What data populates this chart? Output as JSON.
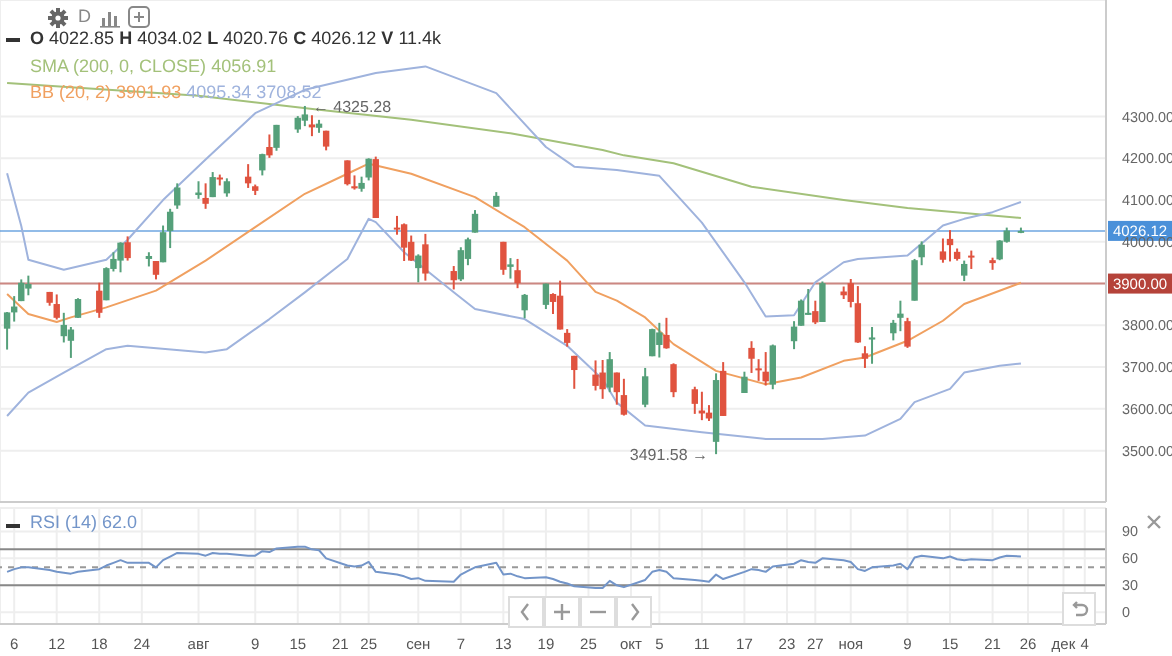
{
  "chart_data": [
    {
      "type": "candlestick",
      "x": [
        "--07-05",
        "--07-06",
        "--07-07",
        "--07-08",
        "--07-11",
        "--07-12",
        "--07-13",
        "--07-14",
        "--07-15",
        "--07-18",
        "--07-19",
        "--07-20",
        "--07-21",
        "--07-22",
        "--07-25",
        "--07-26",
        "--07-27",
        "--07-28",
        "--07-29",
        "--08-01",
        "--08-02",
        "--08-03",
        "--08-04",
        "--08-05",
        "--08-08",
        "--08-09",
        "--08-10",
        "--08-11",
        "--08-12",
        "--08-15",
        "--08-16",
        "--08-17",
        "--08-18",
        "--08-19",
        "--08-22",
        "--08-23",
        "--08-24",
        "--08-25",
        "--08-26",
        "--08-29",
        "--08-30",
        "--08-31",
        "--09-01",
        "--09-02",
        "--09-06",
        "--09-07",
        "--09-08",
        "--09-09",
        "--09-12",
        "--09-13",
        "--09-14",
        "--09-15",
        "--09-16",
        "--09-19",
        "--09-20",
        "--09-21",
        "--09-22",
        "--09-23",
        "--09-26",
        "--09-27",
        "--09-28",
        "--09-29",
        "--09-30",
        "--10-03",
        "--10-04",
        "--10-05",
        "--10-06",
        "--10-07",
        "--10-10",
        "--10-11",
        "--10-12",
        "--10-13",
        "--10-14",
        "--10-17",
        "--10-18",
        "--10-19",
        "--10-20",
        "--10-21",
        "--10-24",
        "--10-25",
        "--10-26",
        "--10-27",
        "--10-28",
        "--10-31",
        "--11-01",
        "--11-02",
        "--11-03",
        "--11-04",
        "--11-07",
        "--11-08",
        "--11-09",
        "--11-10",
        "--11-11",
        "--11-14",
        "--11-15",
        "--11-16",
        "--11-17",
        "--11-18",
        "--11-21",
        "--11-22",
        "--11-23",
        "--11-25"
      ],
      "ohlc": [
        [
          3792,
          3832,
          3742,
          3831
        ],
        [
          3831,
          3870,
          3809,
          3845
        ],
        [
          3858,
          3910,
          3858,
          3902
        ],
        [
          3888,
          3919,
          3872,
          3899
        ],
        [
          3880,
          3880,
          3847,
          3854
        ],
        [
          3851,
          3874,
          3814,
          3818
        ],
        [
          3774,
          3830,
          3759,
          3801
        ],
        [
          3763,
          3796,
          3722,
          3790
        ],
        [
          3818,
          3865,
          3818,
          3863
        ],
        [
          3883,
          3902,
          3818,
          3830
        ],
        [
          3860,
          3939,
          3860,
          3937
        ],
        [
          3935,
          3975,
          3929,
          3959
        ],
        [
          3955,
          3999,
          3927,
          3998
        ],
        [
          3999,
          4013,
          3955,
          3961
        ],
        [
          3959,
          3975,
          3941,
          3966
        ],
        [
          3954,
          3954,
          3910,
          3921
        ],
        [
          3951,
          4039,
          3951,
          4023
        ],
        [
          4026,
          4079,
          3985,
          4072
        ],
        [
          4087,
          4140,
          4079,
          4130
        ],
        [
          4112,
          4145,
          4103,
          4118
        ],
        [
          4105,
          4140,
          4079,
          4091
        ],
        [
          4107,
          4167,
          4107,
          4155
        ],
        [
          4154,
          4161,
          4135,
          4152
        ],
        [
          4116,
          4152,
          4108,
          4145
        ],
        [
          4156,
          4186,
          4129,
          4140
        ],
        [
          4133,
          4137,
          4112,
          4122
        ],
        [
          4171,
          4211,
          4159,
          4210
        ],
        [
          4227,
          4257,
          4201,
          4207
        ],
        [
          4225,
          4280,
          4218,
          4280
        ],
        [
          4269,
          4301,
          4261,
          4297
        ],
        [
          4290,
          4325.28,
          4277,
          4305
        ],
        [
          4281,
          4303,
          4253,
          4274
        ],
        [
          4273,
          4292,
          4261,
          4283
        ],
        [
          4266,
          4266,
          4219,
          4228
        ],
        [
          4195,
          4195,
          4135,
          4138
        ],
        [
          4133,
          4159,
          4125,
          4128
        ],
        [
          4127,
          4156,
          4120,
          4141
        ],
        [
          4154,
          4200,
          4147,
          4199
        ],
        [
          4198,
          4204,
          4057,
          4057
        ],
        [
          4034,
          4062,
          4017,
          4030
        ],
        [
          4042,
          4044,
          3954,
          3986
        ],
        [
          4000,
          4015,
          3954,
          3955
        ],
        [
          3937,
          3970,
          3903,
          3967
        ],
        [
          3994,
          4019,
          3907,
          3924
        ],
        [
          3930,
          3942,
          3886,
          3908
        ],
        [
          3910,
          3987,
          3906,
          3980
        ],
        [
          3959,
          4010,
          3944,
          4006
        ],
        [
          4022,
          4076,
          4022,
          4067
        ],
        [
          4084,
          4119,
          4084,
          4110
        ],
        [
          4000,
          4000,
          3921,
          3933
        ],
        [
          3940,
          3961,
          3912,
          3946
        ],
        [
          3932,
          3959,
          3889,
          3901
        ],
        [
          3836,
          3875,
          3817,
          3873
        ],
        [
          3849,
          3900,
          3839,
          3900
        ],
        [
          3875,
          3877,
          3827,
          3856
        ],
        [
          3871,
          3907,
          3790,
          3790
        ],
        [
          3782,
          3791,
          3749,
          3758
        ],
        [
          3727,
          3727,
          3648,
          3693
        ],
        [
          3682,
          3716,
          3644,
          3655
        ],
        [
          3687,
          3717,
          3624,
          3647
        ],
        [
          3651,
          3736,
          3640,
          3719
        ],
        [
          3687,
          3687,
          3610,
          3640
        ],
        [
          3633,
          3672,
          3584,
          3586
        ],
        [
          3610,
          3698,
          3604,
          3678
        ],
        [
          3726,
          3792,
          3726,
          3791
        ],
        [
          3753,
          3806,
          3723,
          3783
        ],
        [
          3777,
          3818,
          3744,
          3745
        ],
        [
          3707,
          3709,
          3628,
          3640
        ],
        [
          3647,
          3653,
          3588,
          3612
        ],
        [
          3596,
          3641,
          3573,
          3589
        ],
        [
          3591,
          3609,
          3571,
          3577
        ],
        [
          3521,
          3685,
          3491.58,
          3669
        ],
        [
          3691,
          3712,
          3583,
          3583
        ],
        [
          3638,
          3689,
          3638,
          3677
        ],
        [
          3746,
          3762,
          3686,
          3720
        ],
        [
          3697,
          3719,
          3667,
          3695
        ],
        [
          3689,
          3736,
          3656,
          3666
        ],
        [
          3658,
          3754,
          3647,
          3752
        ],
        [
          3762,
          3810,
          3743,
          3797
        ],
        [
          3799,
          3862,
          3799,
          3859
        ],
        [
          3825,
          3887,
          3825,
          3830
        ],
        [
          3834,
          3859,
          3803,
          3807
        ],
        [
          3808,
          3905,
          3808,
          3901
        ],
        [
          3881,
          3893,
          3863,
          3872
        ],
        [
          3901,
          3911,
          3843,
          3856
        ],
        [
          3853,
          3894,
          3758,
          3759
        ],
        [
          3733,
          3750,
          3698,
          3720
        ],
        [
          3766,
          3796,
          3708,
          3771
        ],
        [
          3781,
          3813,
          3764,
          3806
        ],
        [
          3818,
          3859,
          3786,
          3828
        ],
        [
          3810,
          3818,
          3746,
          3749
        ],
        [
          3859,
          3959,
          3859,
          3956
        ],
        [
          3963,
          4001,
          3944,
          3993
        ],
        [
          3977,
          4008,
          3950,
          3957
        ],
        [
          4007,
          4028,
          3953,
          3992
        ],
        [
          3976,
          3984,
          3955,
          3959
        ],
        [
          3919,
          3955,
          3906,
          3947
        ],
        [
          3967,
          3979,
          3935,
          3965
        ],
        [
          3956,
          3962,
          3933,
          3949
        ],
        [
          3958,
          4004,
          3956,
          4003
        ],
        [
          4000,
          4034,
          3998,
          4027
        ],
        [
          4022.85,
          4034.02,
          4020.76,
          4026.12
        ]
      ],
      "colors": [
        "#55a07a",
        "#55a07a",
        "#55a07a",
        "#55a07a",
        "#e0533f",
        "#e0533f",
        "#55a07a",
        "#55a07a",
        "#55a07a",
        "#e0533f",
        "#55a07a",
        "#55a07a",
        "#55a07a",
        "#e0533f",
        "#55a07a",
        "#e0533f",
        "#55a07a",
        "#55a07a",
        "#55a07a",
        "#55a07a",
        "#e0533f",
        "#55a07a",
        "#e0533f",
        "#55a07a",
        "#e0533f",
        "#e0533f",
        "#55a07a",
        "#e0533f",
        "#55a07a",
        "#55a07a",
        "#55a07a",
        "#e0533f",
        "#55a07a",
        "#e0533f",
        "#e0533f",
        "#e0533f",
        "#55a07a",
        "#55a07a",
        "#e0533f",
        "#e0533f",
        "#e0533f",
        "#e0533f",
        "#55a07a",
        "#e0533f",
        "#e0533f",
        "#55a07a",
        "#55a07a",
        "#55a07a",
        "#55a07a",
        "#e0533f",
        "#55a07a",
        "#e0533f",
        "#55a07a",
        "#55a07a",
        "#e0533f",
        "#e0533f",
        "#e0533f",
        "#e0533f",
        "#e0533f",
        "#e0533f",
        "#55a07a",
        "#e0533f",
        "#e0533f",
        "#55a07a",
        "#55a07a",
        "#55a07a",
        "#e0533f",
        "#e0533f",
        "#e0533f",
        "#e0533f",
        "#e0533f",
        "#55a07a",
        "#e0533f",
        "#55a07a",
        "#e0533f",
        "#e0533f",
        "#e0533f",
        "#55a07a",
        "#55a07a",
        "#55a07a",
        "#55a07a",
        "#e0533f",
        "#55a07a",
        "#e0533f",
        "#e0533f",
        "#e0533f",
        "#e0533f",
        "#55a07a",
        "#55a07a",
        "#55a07a",
        "#e0533f",
        "#55a07a",
        "#55a07a",
        "#e0533f",
        "#e0533f",
        "#e0533f",
        "#55a07a",
        "#e0533f",
        "#e0533f",
        "#55a07a",
        "#55a07a",
        "#55a07a"
      ],
      "series": [
        {
          "type": "line",
          "name": "SMA (200, 0, CLOSE)",
          "color": "#a3c17a",
          "x": [
            "--07-05",
            "--08-01",
            "--08-18",
            "--08-31",
            "--09-14",
            "--09-27",
            "--09-30",
            "--10-07",
            "--10-18",
            "--10-31",
            "--11-09",
            "--11-25"
          ],
          "values": [
            4380,
            4350,
            4316,
            4292,
            4260,
            4220,
            4207,
            4188,
            4132,
            4100,
            4081,
            4056.91
          ]
        },
        {
          "type": "line",
          "name": "BB (20, 2)",
          "color": "#f0a060",
          "x": [
            "--07-05",
            "--07-08",
            "--07-12",
            "--07-14",
            "--07-19",
            "--07-26",
            "--08-02",
            "--08-09",
            "--08-16",
            "--08-22",
            "--08-25",
            "--08-31",
            "--09-09",
            "--09-16",
            "--09-22",
            "--09-26",
            "--09-29",
            "--10-03",
            "--10-07",
            "--10-13",
            "--10-20",
            "--10-25",
            "--10-31",
            "--11-03",
            "--11-09",
            "--11-14",
            "--11-17",
            "--11-25"
          ],
          "values": [
            3875,
            3827,
            3808,
            3819,
            3843,
            3883,
            3955,
            4035,
            4115,
            4163,
            4187,
            4163,
            4107,
            4035,
            3955,
            3880,
            3859,
            3819,
            3755,
            3691,
            3659,
            3675,
            3715,
            3723,
            3763,
            3811,
            3851,
            3901.93
          ]
        },
        {
          "type": "line",
          "color": "#9fb3dd",
          "x": [
            "--07-05",
            "--07-07",
            "--07-08",
            "--07-13",
            "--07-19",
            "--07-22",
            "--07-27",
            "--08-02",
            "--08-09",
            "--08-16",
            "--08-26",
            "--09-02",
            "--09-12",
            "--09-19",
            "--09-23",
            "--09-29",
            "--10-05",
            "--10-11",
            "--10-17",
            "--10-20",
            "--10-24",
            "--10-27",
            "--10-31",
            "--11-02",
            "--11-09",
            "--11-14",
            "--11-17",
            "--11-21",
            "--11-25"
          ],
          "values": [
            4164,
            4038,
            3957,
            3933,
            3957,
            4005,
            4100,
            4197,
            4308,
            4364,
            4404,
            4420,
            4356,
            4227,
            4180,
            4172,
            4158,
            4046,
            3903,
            3821,
            3824,
            3903,
            3951,
            3959,
            3967,
            4039,
            4055,
            4071,
            4095.34
          ]
        },
        {
          "type": "line",
          "color": "#9fb3dd",
          "x": [
            "--07-05",
            "--07-08",
            "--07-13",
            "--07-19",
            "--07-22",
            "--08-02",
            "--08-05",
            "--08-11",
            "--08-16",
            "--08-22",
            "--08-25",
            "--08-26",
            "--08-30",
            "--09-06",
            "--09-09",
            "--09-16",
            "--09-22",
            "--09-27",
            "--09-29",
            "--10-03",
            "--10-11",
            "--10-20",
            "--10-28",
            "--11-03",
            "--11-08",
            "--11-10",
            "--11-15",
            "--11-17",
            "--11-22",
            "--11-25"
          ],
          "values": [
            3583,
            3639,
            3687,
            3743,
            3751,
            3735,
            3743,
            3815,
            3879,
            3959,
            4055,
            4047,
            3975,
            3879,
            3839,
            3815,
            3751,
            3671,
            3615,
            3560,
            3544,
            3528,
            3528,
            3536,
            3576,
            3616,
            3648,
            3687,
            3703,
            3708.52
          ]
        }
      ],
      "xlim": [
        "--07-04",
        "--12-07"
      ],
      "xticks": [
        {
          "value": "--07-06",
          "label": null
        },
        {
          "value": "--07-12",
          "label": null
        },
        {
          "value": "--07-18",
          "label": null
        },
        {
          "value": "--07-24",
          "label": null
        },
        {
          "value": "--08-01",
          "label": null
        },
        {
          "value": "--08-09",
          "label": null
        },
        {
          "value": "--08-15",
          "label": null
        },
        {
          "value": "--08-21",
          "label": null
        },
        {
          "value": "--08-25",
          "label": null
        },
        {
          "value": "--09-01",
          "label": null
        },
        {
          "value": "--09-07",
          "label": null
        },
        {
          "value": "--09-13",
          "label": null
        },
        {
          "value": "--09-19",
          "label": null
        },
        {
          "value": "--09-25",
          "label": null
        },
        {
          "value": "--10-01",
          "label": null
        },
        {
          "value": "--10-05",
          "label": null
        },
        {
          "value": "--10-11",
          "label": null
        },
        {
          "value": "--10-17",
          "label": null
        },
        {
          "value": "--10-23",
          "label": null
        },
        {
          "value": "--10-27",
          "label": null
        },
        {
          "value": "--11-01",
          "label": null
        },
        {
          "value": "--11-09",
          "label": null
        },
        {
          "value": "--11-15",
          "label": null
        },
        {
          "value": "--11-21",
          "label": null
        },
        {
          "value": "--11-26",
          "label": null
        },
        {
          "value": "--12-01",
          "label": null
        },
        {
          "value": "--12-04",
          "label": null
        }
      ],
      "ylim": [
        3377,
        4579
      ],
      "yticks": [
        {
          "value": 3500,
          "label": "3500.00"
        },
        {
          "value": 3600,
          "label": "3600.00"
        },
        {
          "value": 3700,
          "label": "3700.00"
        },
        {
          "value": 3800,
          "label": "3800.00"
        },
        {
          "value": 3900,
          "label": null
        },
        {
          "value": 4000,
          "label": "4000.00"
        },
        {
          "value": 4100,
          "label": "4100.00"
        },
        {
          "value": 4200,
          "label": "4200.00"
        },
        {
          "value": 4300,
          "label": "4300.00"
        }
      ],
      "tick_labels": "y",
      "grid": true,
      "legend": "top left",
      "ref_lines": [
        {
          "axis": "y",
          "value": 4026.12,
          "label": "4026.12",
          "color": "#4a90d9"
        },
        {
          "axis": "y",
          "value": 3900,
          "label": "3900.00",
          "color": "#b5433a"
        }
      ],
      "annotations": [
        "D",
        "O 4022.85 H 4034.02 L 4020.76 C 4026.12 V 11.4k",
        "4056.91",
        "3901.93",
        "4095.34",
        "3708.52",
        {
          "text": "← 4325.28",
          "x": "--08-16",
          "y": 4325.28
        },
        {
          "text": "3491.58 →",
          "x": "--10-13",
          "y": 3491.58
        }
      ]
    },
    {
      "type": "line",
      "x": [
        "--07-05",
        "--07-06",
        "--07-07",
        "--07-08",
        "--07-11",
        "--07-12",
        "--07-13",
        "--07-14",
        "--07-15",
        "--07-18",
        "--07-19",
        "--07-20",
        "--07-21",
        "--07-22",
        "--07-25",
        "--07-26",
        "--07-27",
        "--07-28",
        "--07-29",
        "--08-01",
        "--08-02",
        "--08-03",
        "--08-04",
        "--08-05",
        "--08-08",
        "--08-09",
        "--08-10",
        "--08-11",
        "--08-12",
        "--08-15",
        "--08-16",
        "--08-17",
        "--08-18",
        "--08-19",
        "--08-22",
        "--08-23",
        "--08-24",
        "--08-25",
        "--08-26",
        "--08-29",
        "--08-30",
        "--08-31",
        "--09-01",
        "--09-02",
        "--09-06",
        "--09-07",
        "--09-08",
        "--09-09",
        "--09-12",
        "--09-13",
        "--09-14",
        "--09-15",
        "--09-16",
        "--09-19",
        "--09-20",
        "--09-21",
        "--09-22",
        "--09-23",
        "--09-26",
        "--09-27",
        "--09-28",
        "--09-29",
        "--09-30",
        "--10-03",
        "--10-04",
        "--10-05",
        "--10-06",
        "--10-07",
        "--10-10",
        "--10-11",
        "--10-12",
        "--10-13",
        "--10-14",
        "--10-17",
        "--10-18",
        "--10-19",
        "--10-20",
        "--10-21",
        "--10-24",
        "--10-25",
        "--10-26",
        "--10-27",
        "--10-28",
        "--10-31",
        "--11-01",
        "--11-02",
        "--11-03",
        "--11-04",
        "--11-07",
        "--11-08",
        "--11-09",
        "--11-10",
        "--11-11",
        "--11-14",
        "--11-15",
        "--11-16",
        "--11-17",
        "--11-18",
        "--11-21",
        "--11-22",
        "--11-23",
        "--11-25"
      ],
      "series": [
        {
          "name": "RSI (14)",
          "color": "#7395c9",
          "values": [
            45,
            48,
            50,
            50,
            47,
            45,
            44,
            43,
            45,
            48,
            52,
            55,
            58,
            55,
            55,
            50,
            58,
            62,
            66,
            65,
            63,
            66,
            65,
            65,
            63,
            63,
            68,
            67,
            71,
            73,
            73,
            70,
            69,
            60,
            52,
            51,
            52,
            56,
            45,
            42,
            40,
            37,
            38,
            35,
            34,
            42,
            46,
            50,
            55,
            42,
            43,
            40,
            38,
            39,
            37,
            34,
            32,
            29,
            27,
            27,
            35,
            30,
            28,
            36,
            45,
            47,
            45,
            38,
            36,
            35,
            34,
            42,
            37,
            45,
            48,
            47,
            45,
            51,
            54,
            58,
            56,
            55,
            60,
            58,
            56,
            48,
            46,
            50,
            52,
            54,
            48,
            61,
            63,
            60,
            62,
            59,
            58,
            59,
            58,
            61,
            63,
            62.0
          ]
        }
      ],
      "xlim": [
        "--07-04",
        "--12-07"
      ],
      "xticks": [
        {
          "value": "--07-06",
          "label": "6"
        },
        {
          "value": "--07-12",
          "label": "12"
        },
        {
          "value": "--07-18",
          "label": "18"
        },
        {
          "value": "--07-24",
          "label": "24"
        },
        {
          "value": "--08-01",
          "label": "авг"
        },
        {
          "value": "--08-09",
          "label": "9"
        },
        {
          "value": "--08-15",
          "label": "15"
        },
        {
          "value": "--08-21",
          "label": "21"
        },
        {
          "value": "--08-25",
          "label": "25"
        },
        {
          "value": "--09-01",
          "label": "сен"
        },
        {
          "value": "--09-07",
          "label": "7"
        },
        {
          "value": "--09-13",
          "label": "13"
        },
        {
          "value": "--09-19",
          "label": "19"
        },
        {
          "value": "--09-25",
          "label": "25"
        },
        {
          "value": "--10-01",
          "label": "окт"
        },
        {
          "value": "--10-05",
          "label": "5"
        },
        {
          "value": "--10-11",
          "label": "11"
        },
        {
          "value": "--10-17",
          "label": "17"
        },
        {
          "value": "--10-23",
          "label": "23"
        },
        {
          "value": "--10-27",
          "label": "27"
        },
        {
          "value": "--11-01",
          "label": "ноя"
        },
        {
          "value": "--11-09",
          "label": "9"
        },
        {
          "value": "--11-15",
          "label": "15"
        },
        {
          "value": "--11-21",
          "label": "21"
        },
        {
          "value": "--11-26",
          "label": "26"
        },
        {
          "value": "--12-01",
          "label": "дек"
        },
        {
          "value": "--12-04",
          "label": "4"
        }
      ],
      "ylim": [
        -13,
        116
      ],
      "yticks": [
        0,
        30,
        60,
        90
      ],
      "grid": true,
      "legend": "top left",
      "annotations": [
        "62.0"
      ],
      "ref_lines": [
        {
          "axis": "y",
          "value": 70,
          "color": "#888888",
          "line_style": "solid"
        },
        {
          "axis": "y",
          "value": 50,
          "color": "#999999",
          "line_style": "dashed"
        },
        {
          "axis": "y",
          "value": 30,
          "color": "#888888",
          "line_style": "solid"
        }
      ]
    }
  ]
}
